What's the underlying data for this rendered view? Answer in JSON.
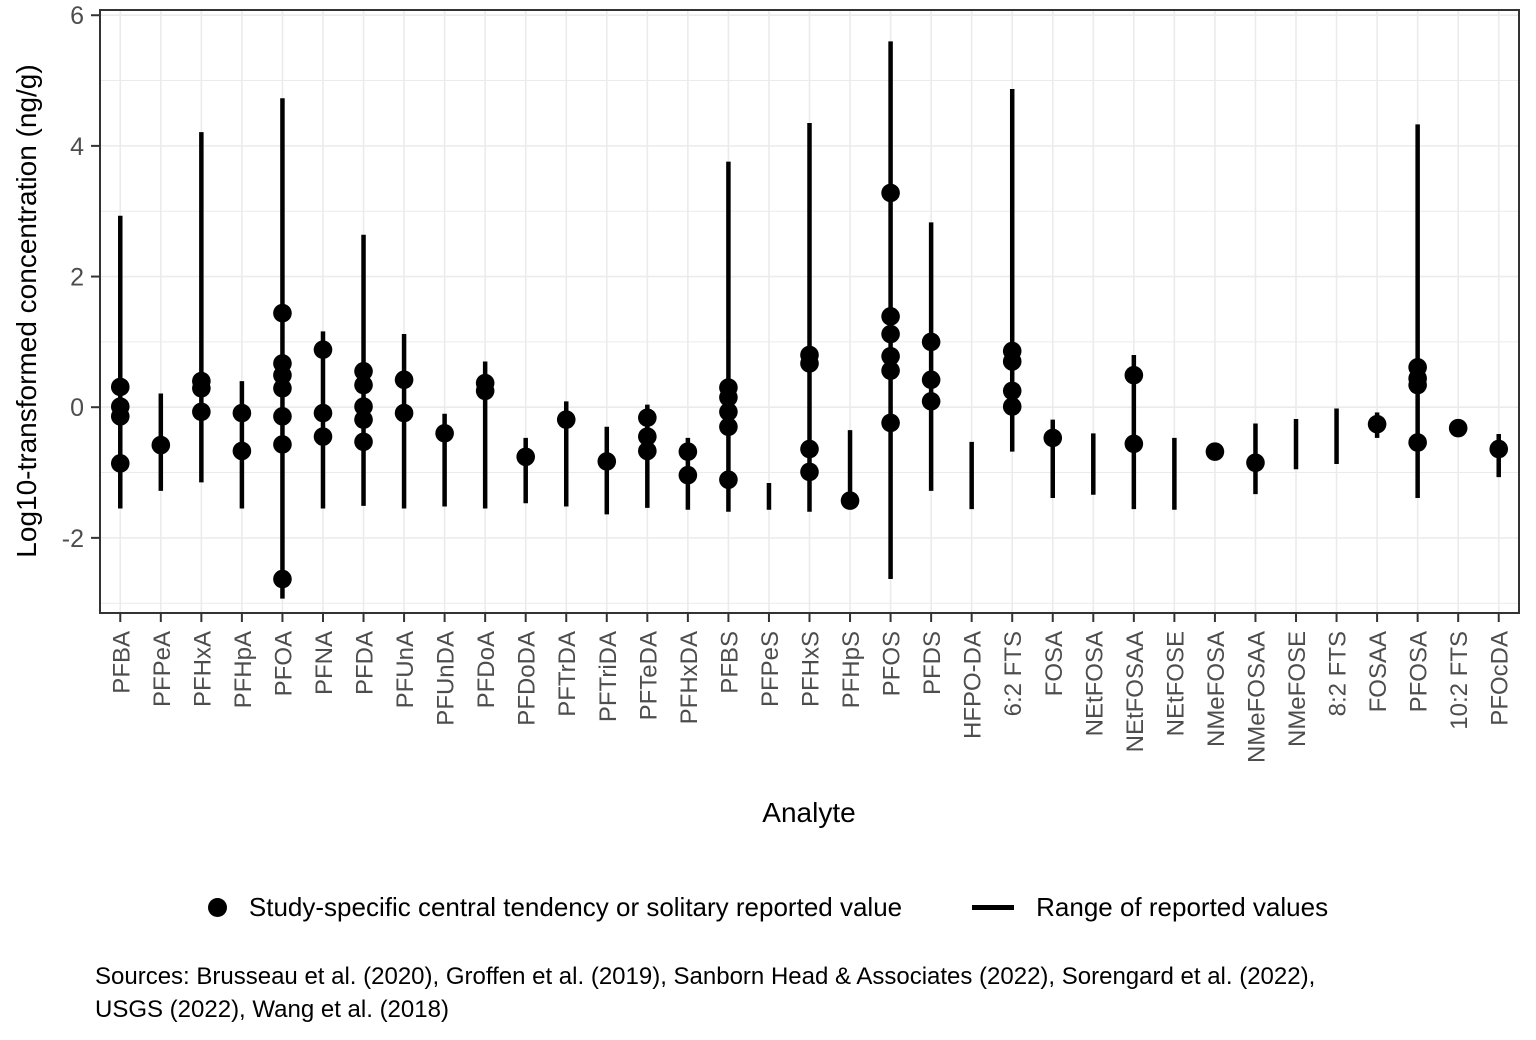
{
  "colors": {
    "data": "#000000",
    "grid": "#EBEBEB",
    "panel_border": "#333333",
    "tick_mark": "#333333",
    "tick_label": "#4D4D4D",
    "axis_title": "#000000",
    "background": "#FFFFFF"
  },
  "chart_data": {
    "type": "scatter",
    "title": "",
    "xlabel": "Analyte",
    "ylabel": "Log10-transformed concentration (ng/g)",
    "ylim": [
      -3.15,
      6.08
    ],
    "yticks": [
      -2,
      0,
      2,
      4,
      6
    ],
    "minor_grid_y": [
      -3,
      -1,
      1,
      3,
      5
    ],
    "grid": true,
    "legend_position": "bottom",
    "series_meaning": {
      "points": "Study-specific central tendency or solitary reported value (log10 ng/g)",
      "range": "Range of reported values [min, max] (log10 ng/g)"
    },
    "analytes": [
      {
        "label": "PFBA",
        "points": [
          0.31,
          0.01,
          -0.14,
          -0.86
        ],
        "range": [
          -1.55,
          2.93
        ]
      },
      {
        "label": "PFPeA",
        "points": [
          -0.58
        ],
        "range": [
          -1.28,
          0.21
        ]
      },
      {
        "label": "PFHxA",
        "points": [
          0.4,
          0.29,
          -0.07
        ],
        "range": [
          -1.15,
          4.21
        ]
      },
      {
        "label": "PFHpA",
        "points": [
          -0.09,
          -0.67
        ],
        "range": [
          -1.55,
          0.4
        ]
      },
      {
        "label": "PFOA",
        "points": [
          1.44,
          0.67,
          0.49,
          0.29,
          -0.14,
          -0.57,
          -2.63
        ],
        "range": [
          -2.93,
          4.73
        ]
      },
      {
        "label": "PFNA",
        "points": [
          0.88,
          -0.09,
          -0.45
        ],
        "range": [
          -1.55,
          1.16
        ]
      },
      {
        "label": "PFDA",
        "points": [
          0.55,
          0.34,
          0.01,
          -0.19,
          -0.53
        ],
        "range": [
          -1.51,
          2.64
        ]
      },
      {
        "label": "PFUnA",
        "points": [
          0.42,
          -0.09
        ],
        "range": [
          -1.55,
          1.12
        ]
      },
      {
        "label": "PFUnDA",
        "points": [
          -0.4
        ],
        "range": [
          -1.52,
          -0.1
        ]
      },
      {
        "label": "PFDoA",
        "points": [
          0.37,
          0.25
        ],
        "range": [
          -1.55,
          0.7
        ]
      },
      {
        "label": "PFDoDA",
        "points": [
          -0.76
        ],
        "range": [
          -1.47,
          -0.47
        ]
      },
      {
        "label": "PFTrDA",
        "points": [
          -0.19
        ],
        "range": [
          -1.52,
          0.09
        ]
      },
      {
        "label": "PFTriDA",
        "points": [
          -0.83
        ],
        "range": [
          -1.64,
          -0.3
        ]
      },
      {
        "label": "PFTeDA",
        "points": [
          -0.16,
          -0.45,
          -0.67
        ],
        "range": [
          -1.54,
          0.04
        ]
      },
      {
        "label": "PFHxDA",
        "points": [
          -0.68,
          -1.04
        ],
        "range": [
          -1.57,
          -0.47
        ]
      },
      {
        "label": "PFBS",
        "points": [
          0.3,
          0.15,
          -0.07,
          -0.3,
          -1.11
        ],
        "range": [
          -1.6,
          3.76
        ]
      },
      {
        "label": "PFPeS",
        "points": [],
        "range": [
          -1.57,
          -1.16
        ]
      },
      {
        "label": "PFHxS",
        "points": [
          0.8,
          0.67,
          -0.64,
          -0.99
        ],
        "range": [
          -1.6,
          4.35
        ]
      },
      {
        "label": "PFHpS",
        "points": [
          -1.43
        ],
        "range": [
          -1.47,
          -0.35
        ]
      },
      {
        "label": "PFOS",
        "points": [
          3.28,
          1.39,
          1.12,
          0.78,
          0.56,
          -0.24
        ],
        "range": [
          -2.63,
          5.6
        ]
      },
      {
        "label": "PFDS",
        "points": [
          1.0,
          0.42,
          0.09
        ],
        "range": [
          -1.28,
          2.83
        ]
      },
      {
        "label": "HFPO-DA",
        "points": [],
        "range": [
          -1.56,
          -0.53
        ]
      },
      {
        "label": "6:2 FTS",
        "points": [
          0.86,
          0.7,
          0.25,
          0.01
        ],
        "range": [
          -0.68,
          4.87
        ]
      },
      {
        "label": "FOSA",
        "points": [
          -0.47
        ],
        "range": [
          -1.39,
          -0.19
        ]
      },
      {
        "label": "NEtFOSA",
        "points": [],
        "range": [
          -1.34,
          -0.4
        ]
      },
      {
        "label": "NEtFOSAA",
        "points": [
          0.49,
          -0.56
        ],
        "range": [
          -1.56,
          0.8
        ]
      },
      {
        "label": "NEtFOSE",
        "points": [],
        "range": [
          -1.57,
          -0.47
        ]
      },
      {
        "label": "NMeFOSA",
        "points": [
          -0.68
        ],
        "range": null
      },
      {
        "label": "NMeFOSAA",
        "points": [
          -0.85
        ],
        "range": [
          -1.33,
          -0.25
        ]
      },
      {
        "label": "NMeFOSE",
        "points": [],
        "range": [
          -0.95,
          -0.18
        ]
      },
      {
        "label": "8:2 FTS",
        "points": [],
        "range": [
          -0.87,
          -0.02
        ]
      },
      {
        "label": "FOSAA",
        "points": [
          -0.26
        ],
        "range": [
          -0.47,
          -0.08
        ]
      },
      {
        "label": "PFOSA",
        "points": [
          0.61,
          0.44,
          0.34,
          -0.54
        ],
        "range": [
          -1.39,
          4.33
        ]
      },
      {
        "label": "10:2 FTS",
        "points": [
          -0.32
        ],
        "range": null
      },
      {
        "label": "PFOcDA",
        "points": [
          -0.64
        ],
        "range": [
          -1.07,
          -0.41
        ]
      }
    ]
  },
  "legend": {
    "point_label": "Study-specific central tendency or solitary reported value",
    "line_label": "Range of reported values"
  },
  "footer": {
    "line1": "Sources: Brusseau et al. (2020), Groffen et al. (2019), Sanborn Head & Associates (2022), Sorengard et al. (2022),",
    "line2": "USGS (2022), Wang et al. (2018)"
  }
}
